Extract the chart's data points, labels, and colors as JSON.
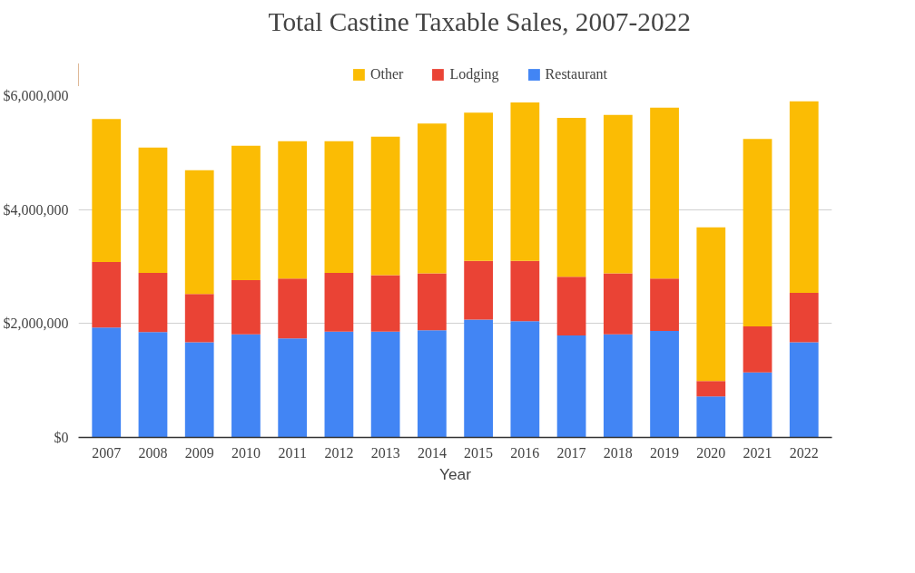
{
  "chart_data": {
    "type": "bar",
    "stacked": true,
    "title": "Total Castine Taxable Sales, 2007-2022",
    "xlabel": "Year",
    "categories": [
      "2007",
      "2008",
      "2009",
      "2010",
      "2011",
      "2012",
      "2013",
      "2014",
      "2015",
      "2016",
      "2017",
      "2018",
      "2019",
      "2020",
      "2021",
      "2022"
    ],
    "series": [
      {
        "name": "Restaurant",
        "color": "#4285f4",
        "values": [
          1930000,
          1850000,
          1670000,
          1810000,
          1740000,
          1860000,
          1860000,
          1880000,
          2070000,
          2040000,
          1790000,
          1810000,
          1870000,
          720000,
          1140000,
          1670000
        ]
      },
      {
        "name": "Lodging",
        "color": "#ea4335",
        "values": [
          1150000,
          1040000,
          850000,
          950000,
          1050000,
          1030000,
          990000,
          1000000,
          1030000,
          1060000,
          1030000,
          1070000,
          920000,
          270000,
          810000,
          870000
        ]
      },
      {
        "name": "Other",
        "color": "#fbbc04",
        "values": [
          2510000,
          2200000,
          2170000,
          2360000,
          2410000,
          2310000,
          2430000,
          2630000,
          2600000,
          2780000,
          2790000,
          2780000,
          3000000,
          2700000,
          3290000,
          3360000
        ]
      }
    ],
    "ylim": [
      0,
      6000000
    ],
    "yticks": [
      {
        "value": 0,
        "label": "$0"
      },
      {
        "value": 2000000,
        "label": "$2,000,000"
      },
      {
        "value": 4000000,
        "label": "$4,000,000"
      },
      {
        "value": 6000000,
        "label": "$6,000,000"
      }
    ],
    "grid": "y",
    "legend": "top"
  }
}
